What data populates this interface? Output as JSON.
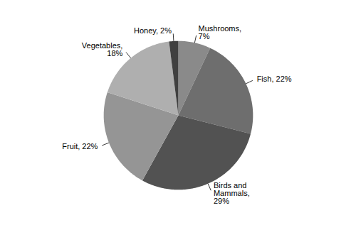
{
  "chart_data": {
    "type": "pie",
    "categories": [
      "Mushrooms,\n7%",
      "Fish, 22%",
      "Birds and\nMammals,\n29%",
      "Fruit, 22%",
      "Vegetables,\n18%",
      "Honey, 2%"
    ],
    "values": [
      7,
      22,
      29,
      22,
      18,
      2
    ],
    "colors": [
      "#8a8a8a",
      "#6e6e6e",
      "#525252",
      "#959595",
      "#afafaf",
      "#404040"
    ]
  }
}
